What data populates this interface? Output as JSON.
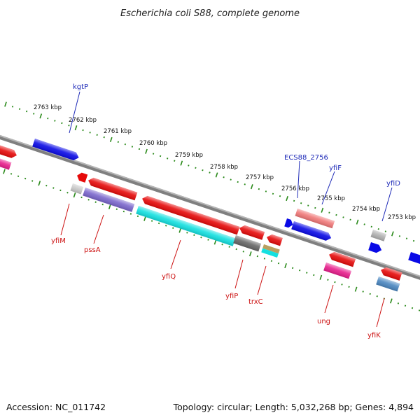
{
  "title": "Escherichia coli S88, complete genome",
  "footer": {
    "accession": "Accession: NC_011742",
    "summary": "Topology: circular; Length: 5,032,268 bp; Genes: 4,894"
  },
  "scale_labels": [
    "2763 kbp",
    "2762 kbp",
    "2761 kbp",
    "2760 kbp",
    "2759 kbp",
    "2758 kbp",
    "2757 kbp",
    "2756 kbp",
    "2755 kbp",
    "2754 kbp",
    "2753 kbp"
  ],
  "top_gene_labels": [
    "kgtP",
    "ECS88_2756",
    "yfiF",
    "yfiD"
  ],
  "bottom_gene_labels": [
    "yfiM",
    "pssA",
    "yfiQ",
    "yfiP",
    "trxC",
    "ung",
    "yfiK"
  ],
  "colors": {
    "forward_gene": "#0a0ae6",
    "reverse_gene": "#e60a0a",
    "backbone": "#7f7f7f",
    "tick_green": "#2a8a1a",
    "cyan_feature": "#14e0e0",
    "violet_feature": "#7a66cc",
    "pink_feature": "#e81e8c"
  }
}
